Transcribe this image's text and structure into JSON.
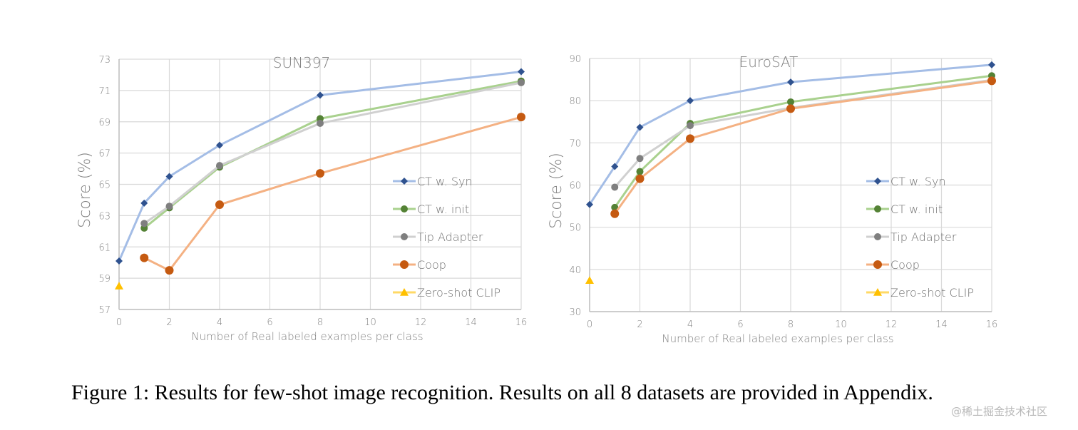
{
  "chart_data": [
    {
      "type": "line",
      "title": "SUN397",
      "xlabel": "Number of Real labeled examples per class",
      "ylabel": "Score (%)",
      "xlim": [
        0,
        16
      ],
      "ylim": [
        57,
        73
      ],
      "xticks": [
        0,
        2,
        4,
        6,
        8,
        10,
        12,
        14,
        16
      ],
      "yticks": [
        57,
        59,
        61,
        63,
        65,
        67,
        69,
        71,
        73
      ],
      "grid": true,
      "legend_position": "bottom-right",
      "series": [
        {
          "name": "CT w. Syn",
          "marker": "diamond",
          "line_color": "#a4bde6",
          "marker_color": "#2f528f",
          "x": [
            0,
            1,
            2,
            4,
            8,
            16
          ],
          "y": [
            60.1,
            63.8,
            65.5,
            67.5,
            70.7,
            72.2
          ]
        },
        {
          "name": "CT w. init",
          "marker": "circle",
          "line_color": "#a9d18e",
          "marker_color": "#548235",
          "x": [
            1,
            2,
            4,
            8,
            16
          ],
          "y": [
            62.2,
            63.5,
            66.1,
            69.2,
            71.6
          ]
        },
        {
          "name": "Tip Adapter",
          "marker": "circle",
          "line_color": "#d0d0d0",
          "marker_color": "#7f7f7f",
          "x": [
            1,
            2,
            4,
            8,
            16
          ],
          "y": [
            62.5,
            63.6,
            66.2,
            68.9,
            71.5
          ]
        },
        {
          "name": "Coop",
          "marker": "circle-large",
          "line_color": "#f4b183",
          "marker_color": "#c55a11",
          "x": [
            1,
            2,
            4,
            8,
            16
          ],
          "y": [
            60.3,
            59.5,
            63.7,
            65.7,
            69.3
          ]
        },
        {
          "name": "Zero-shot CLIP",
          "marker": "triangle",
          "line_color": "#ffd966",
          "marker_color": "#ffc000",
          "x": [
            0
          ],
          "y": [
            58.5
          ]
        }
      ]
    },
    {
      "type": "line",
      "title": "EuroSAT",
      "xlabel": "Number of Real labeled examples per class",
      "ylabel": "Score (%)",
      "xlim": [
        0,
        16
      ],
      "ylim": [
        30,
        90
      ],
      "xticks": [
        0,
        2,
        4,
        6,
        8,
        10,
        12,
        14,
        16
      ],
      "yticks": [
        30,
        40,
        50,
        60,
        70,
        80,
        90
      ],
      "grid": true,
      "legend_position": "bottom-right",
      "series": [
        {
          "name": "CT w. Syn",
          "marker": "diamond",
          "line_color": "#a4bde6",
          "marker_color": "#2f528f",
          "x": [
            0,
            1,
            2,
            4,
            8,
            16
          ],
          "y": [
            55.4,
            64.4,
            73.7,
            80.0,
            84.4,
            88.5
          ]
        },
        {
          "name": "CT w. init",
          "marker": "circle",
          "line_color": "#a9d18e",
          "marker_color": "#548235",
          "x": [
            1,
            2,
            4,
            8,
            16
          ],
          "y": [
            54.7,
            63.2,
            74.6,
            79.7,
            85.9
          ]
        },
        {
          "name": "Tip Adapter",
          "marker": "circle",
          "line_color": "#d0d0d0",
          "marker_color": "#7f7f7f",
          "x": [
            1,
            2,
            4,
            8,
            16
          ],
          "y": [
            59.5,
            66.3,
            74.1,
            78.3,
            84.9
          ]
        },
        {
          "name": "Coop",
          "marker": "circle-large",
          "line_color": "#f4b183",
          "marker_color": "#c55a11",
          "x": [
            1,
            2,
            4,
            8,
            16
          ],
          "y": [
            53.2,
            61.5,
            71.0,
            78.1,
            84.7
          ]
        },
        {
          "name": "Zero-shot CLIP",
          "marker": "triangle",
          "line_color": "#ffd966",
          "marker_color": "#ffc000",
          "x": [
            0
          ],
          "y": [
            37.4
          ]
        }
      ]
    }
  ],
  "caption": "Figure 1: Results for few-shot image recognition. Results on all 8 datasets are provided in Appendix.",
  "watermark": "@稀土掘金技术社区"
}
